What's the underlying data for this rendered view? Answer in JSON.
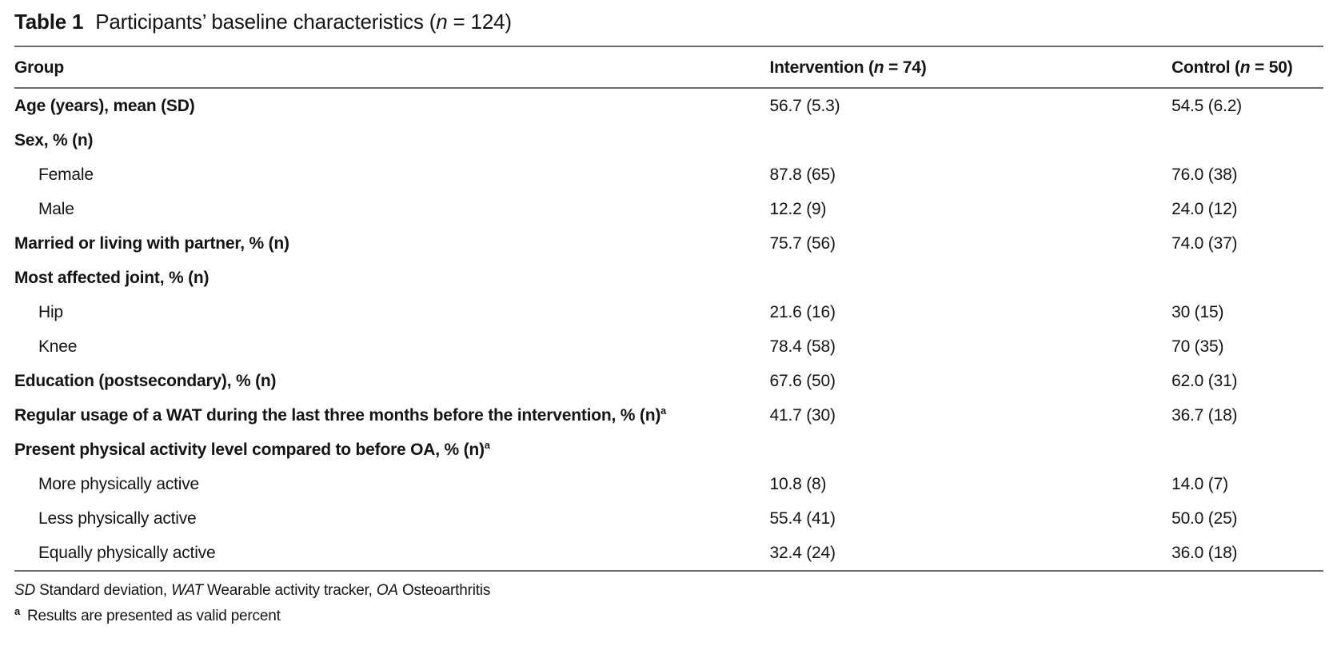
{
  "colors": {
    "background": "#ffffff",
    "text": "#141414",
    "rule": "#6d6d6d"
  },
  "title": {
    "label": "Table 1",
    "caption_segments": [
      {
        "t": "Participants’ baseline characteristics ("
      },
      {
        "t": "n",
        "i": 1
      },
      {
        "t": " = 124)"
      }
    ]
  },
  "columns": [
    {
      "key": "group",
      "segments": [
        {
          "t": "Group",
          "b": 1
        }
      ]
    },
    {
      "key": "intervention",
      "segments": [
        {
          "t": "Intervention (",
          "b": 1
        },
        {
          "t": "n",
          "b": 1,
          "i": 1
        },
        {
          "t": " = 74)",
          "b": 1
        }
      ]
    },
    {
      "key": "control",
      "segments": [
        {
          "t": "Control (",
          "b": 1
        },
        {
          "t": "n",
          "b": 1,
          "i": 1
        },
        {
          "t": " = 50)",
          "b": 1
        }
      ]
    }
  ],
  "rows": [
    {
      "label": "Age (years), mean (SD)",
      "bold": true,
      "indent": false,
      "sup": "",
      "intervention": "56.7 (5.3)",
      "control": "54.5 (6.2)"
    },
    {
      "label": "Sex, % (n)",
      "bold": true,
      "indent": false,
      "sup": "",
      "intervention": "",
      "control": ""
    },
    {
      "label": "Female",
      "bold": false,
      "indent": true,
      "sup": "",
      "intervention": "87.8 (65)",
      "control": "76.0 (38)"
    },
    {
      "label": "Male",
      "bold": false,
      "indent": true,
      "sup": "",
      "intervention": "12.2 (9)",
      "control": "24.0 (12)"
    },
    {
      "label": "Married or living with partner, % (n)",
      "bold": true,
      "indent": false,
      "sup": "",
      "intervention": "75.7 (56)",
      "control": "74.0 (37)"
    },
    {
      "label": "Most affected joint, % (n)",
      "bold": true,
      "indent": false,
      "sup": "",
      "intervention": "",
      "control": ""
    },
    {
      "label": "Hip",
      "bold": false,
      "indent": true,
      "sup": "",
      "intervention": "21.6 (16)",
      "control": "30 (15)"
    },
    {
      "label": "Knee",
      "bold": false,
      "indent": true,
      "sup": "",
      "intervention": "78.4 (58)",
      "control": "70 (35)"
    },
    {
      "label": "Education (postsecondary), % (n)",
      "bold": true,
      "indent": false,
      "sup": "",
      "intervention": "67.6 (50)",
      "control": "62.0 (31)"
    },
    {
      "label": "Regular usage of a WAT during the last three months before the intervention, % (n)",
      "bold": true,
      "indent": false,
      "sup": "a",
      "intervention": "41.7 (30)",
      "control": "36.7 (18)"
    },
    {
      "label": "Present physical activity level compared to before OA, % (n)",
      "bold": true,
      "indent": false,
      "sup": "a",
      "intervention": "",
      "control": ""
    },
    {
      "label": "More physically active",
      "bold": false,
      "indent": true,
      "sup": "",
      "intervention": "10.8 (8)",
      "control": "14.0 (7)"
    },
    {
      "label": "Less physically active",
      "bold": false,
      "indent": true,
      "sup": "",
      "intervention": "55.4 (41)",
      "control": "50.0 (25)"
    },
    {
      "label": "Equally physically active",
      "bold": false,
      "indent": true,
      "sup": "",
      "intervention": "32.4 (24)",
      "control": "36.0 (18)"
    }
  ],
  "footnotes": {
    "abbreviations": [
      {
        "t": "SD",
        "i": 1
      },
      {
        "t": " Standard deviation, "
      },
      {
        "t": "WAT",
        "i": 1
      },
      {
        "t": " Wearable activity tracker, "
      },
      {
        "t": "OA",
        "i": 1
      },
      {
        "t": " Osteoarthritis"
      }
    ],
    "note_a": {
      "marker": "a",
      "text": "Results are presented as valid percent"
    }
  }
}
